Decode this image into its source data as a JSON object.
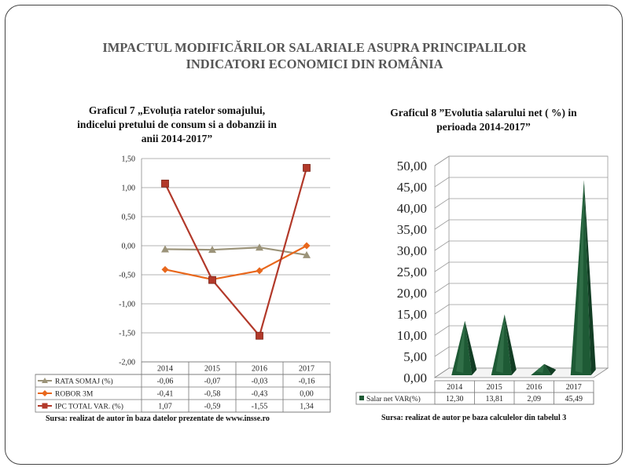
{
  "slide": {
    "title_line1": "IMPACTUL MODIFICĂRILOR  SALARIALE ASUPRA PRINCIPALILOR",
    "title_line2": "INDICATORI ECONOMICI DIN ROMÂNIA"
  },
  "chart7": {
    "title_line1": "Graficul 7 „Evoluția ratelor somajului,",
    "title_line2": "indicelui pretului de consum si a dobanzii in",
    "title_line3": "anii 2014-2017”",
    "source": "Sursa: realizat de autor în baza datelor prezentate de www.insse.ro"
  },
  "chart8": {
    "title_line1": "Graficul 8 ”Evolutia salarului net ( %) in",
    "title_line2": "perioada 2014-2017”",
    "source": "Sursa: realizat de autor pe baza calculelor din tabelul 3"
  },
  "chart_data": [
    {
      "type": "line",
      "categories": [
        "2014",
        "2015",
        "2016",
        "2017"
      ],
      "ylim": [
        -2.0,
        1.5
      ],
      "yticks": [
        "1,50",
        "1,00",
        "0,50",
        "0,00",
        "-0,50",
        "-1,00",
        "-1,50",
        "-2,00"
      ],
      "grid": true,
      "legend": "data-table",
      "series": [
        {
          "name": "RATA SOMAJ (%)",
          "values": [
            -0.06,
            -0.07,
            -0.03,
            -0.16
          ],
          "labels": [
            "-0,06",
            "-0,07",
            "-0,03",
            "-0,16"
          ],
          "color": "#9b9379",
          "marker": "triangle"
        },
        {
          "name": "ROBOR 3M",
          "values": [
            -0.41,
            -0.58,
            -0.43,
            0.0
          ],
          "labels": [
            "-0,41",
            "-0,58",
            "-0,43",
            "0,00"
          ],
          "color": "#e8671c",
          "marker": "diamond"
        },
        {
          "name": "IPC TOTAL VAR. (%)",
          "values": [
            1.07,
            -0.59,
            -1.55,
            1.34
          ],
          "labels": [
            "1,07",
            "-0,59",
            "-1,55",
            "1,34"
          ],
          "color": "#b2392a",
          "marker": "square"
        }
      ]
    },
    {
      "type": "bar",
      "style": "3d-pyramid",
      "categories": [
        "2014",
        "2015",
        "2016",
        "2017"
      ],
      "ylim": [
        0,
        50
      ],
      "yticks": [
        "50,00",
        "45,00",
        "40,00",
        "35,00",
        "30,00",
        "25,00",
        "20,00",
        "15,00",
        "10,00",
        "5,00",
        "0,00"
      ],
      "grid": true,
      "legend": "data-table",
      "series": [
        {
          "name": "Salar net VAR(%)",
          "values": [
            12.3,
            13.81,
            2.09,
            45.49
          ],
          "labels": [
            "12,30",
            "13,81",
            "2,09",
            "45,49"
          ],
          "color": "#1e5a35"
        }
      ]
    }
  ]
}
